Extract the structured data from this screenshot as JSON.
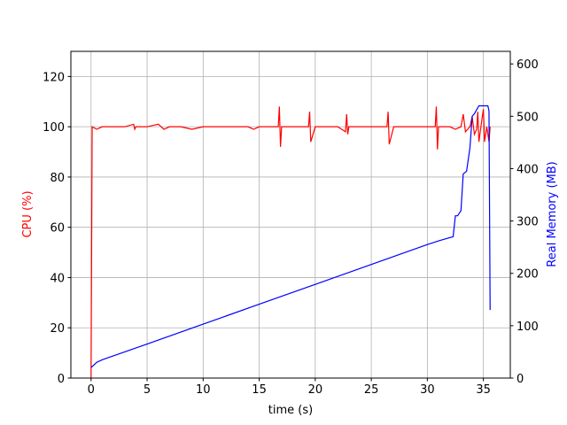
{
  "chart_data": {
    "type": "line",
    "xlabel": "time (s)",
    "ylabel": "CPU (%)",
    "y2label": "Real Memory (MB)",
    "xlim": [
      -1.8,
      37.4
    ],
    "xticks": [
      0,
      5,
      10,
      15,
      20,
      25,
      30,
      35
    ],
    "ylim": [
      0,
      130
    ],
    "yticks": [
      0,
      20,
      40,
      60,
      80,
      100,
      120
    ],
    "y2lim": [
      0,
      624
    ],
    "y2ticks": [
      0,
      100,
      200,
      300,
      400,
      500,
      600
    ],
    "grid": true,
    "series": [
      {
        "name": "CPU (%)",
        "color": "#ff0000",
        "axis": "y",
        "x": [
          0,
          0.1,
          0.5,
          1,
          2,
          3,
          3.8,
          3.9,
          4,
          5,
          6,
          6.5,
          7,
          8,
          9,
          10,
          11,
          12,
          13,
          14,
          14.5,
          15,
          16,
          16.7,
          16.8,
          16.9,
          17,
          18,
          19,
          19.4,
          19.5,
          19.6,
          20,
          21,
          22,
          22.7,
          22.8,
          22.9,
          23,
          24,
          25,
          26,
          26.4,
          26.5,
          26.6,
          27,
          28,
          29,
          30,
          30.7,
          30.8,
          30.9,
          31,
          32,
          32.5,
          33,
          33.2,
          33.4,
          33.8,
          34,
          34.2,
          34.4,
          34.5,
          34.6,
          34.9,
          35,
          35.1,
          35.3,
          35.5,
          35.6
        ],
        "values": [
          0,
          100,
          99,
          100,
          100,
          100,
          101,
          99,
          100,
          100,
          101,
          99,
          100,
          100,
          99,
          100,
          100,
          100,
          100,
          100,
          99,
          100,
          100,
          100,
          108,
          92,
          100,
          100,
          100,
          100,
          106,
          94,
          100,
          100,
          100,
          98,
          105,
          97,
          100,
          100,
          100,
          100,
          100,
          106,
          93,
          100,
          100,
          100,
          100,
          100,
          108,
          91,
          100,
          100,
          99,
          100,
          105,
          98,
          100,
          104,
          97,
          99,
          106,
          94,
          104,
          107,
          94,
          100,
          94,
          100
        ]
      },
      {
        "name": "Real Memory (MB)",
        "color": "#0000ff",
        "axis": "y2",
        "x": [
          0,
          0.5,
          1,
          5,
          10,
          15,
          20,
          25,
          30,
          31,
          32.3,
          32.5,
          32.7,
          33,
          33.2,
          33.5,
          33.8,
          34,
          34.2,
          34.6,
          35.4,
          35.5,
          35.6
        ],
        "values": [
          20,
          30,
          35,
          65,
          103,
          141,
          179,
          217,
          255,
          262,
          270,
          310,
          310,
          320,
          390,
          395,
          440,
          500,
          505,
          520,
          520,
          510,
          130
        ]
      }
    ]
  }
}
